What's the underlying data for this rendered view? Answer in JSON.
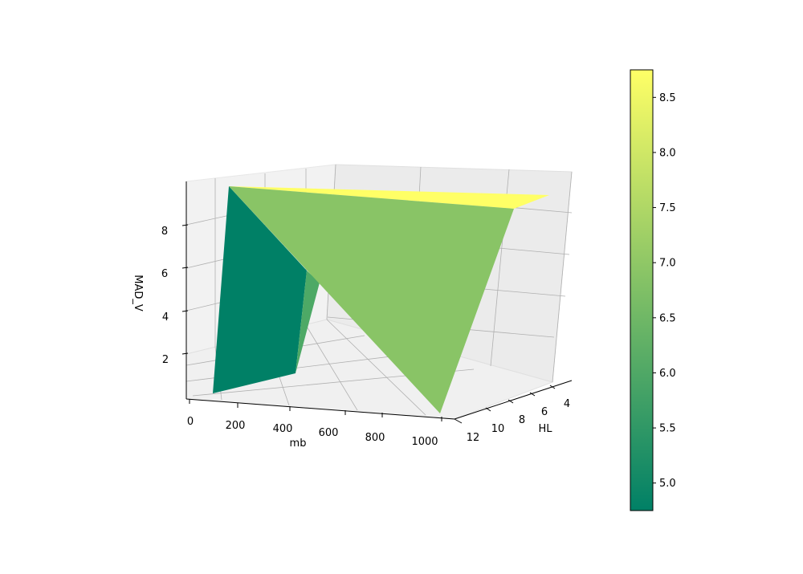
{
  "chart_data": {
    "type": "surface3d",
    "title": "",
    "xlabel": "mb",
    "ylabel": "HL",
    "zlabel": "MAD_V",
    "x_ticks": [
      0,
      200,
      400,
      600,
      800,
      1000
    ],
    "y_ticks": [
      4,
      6,
      8,
      10,
      12
    ],
    "z_ticks": [
      2,
      4,
      6,
      8
    ],
    "colormap": "summer",
    "colorbar": {
      "range": [
        4.75,
        8.75
      ],
      "ticks": [
        "5.0",
        "5.5",
        "6.0",
        "6.5",
        "7.0",
        "7.5",
        "8.0",
        "8.5"
      ]
    },
    "surface_triangles": [
      {
        "name": "back-teal-face",
        "color": "#008066",
        "mean_z": 4.75
      },
      {
        "name": "mid-green-sliver",
        "color": "#4da966",
        "mean_z": 5.6
      },
      {
        "name": "yellow-top-strip",
        "color": "#ffff66",
        "mean_z": 8.75
      },
      {
        "name": "front-green-face",
        "color": "#89c466",
        "mean_z": 7.2
      }
    ]
  }
}
